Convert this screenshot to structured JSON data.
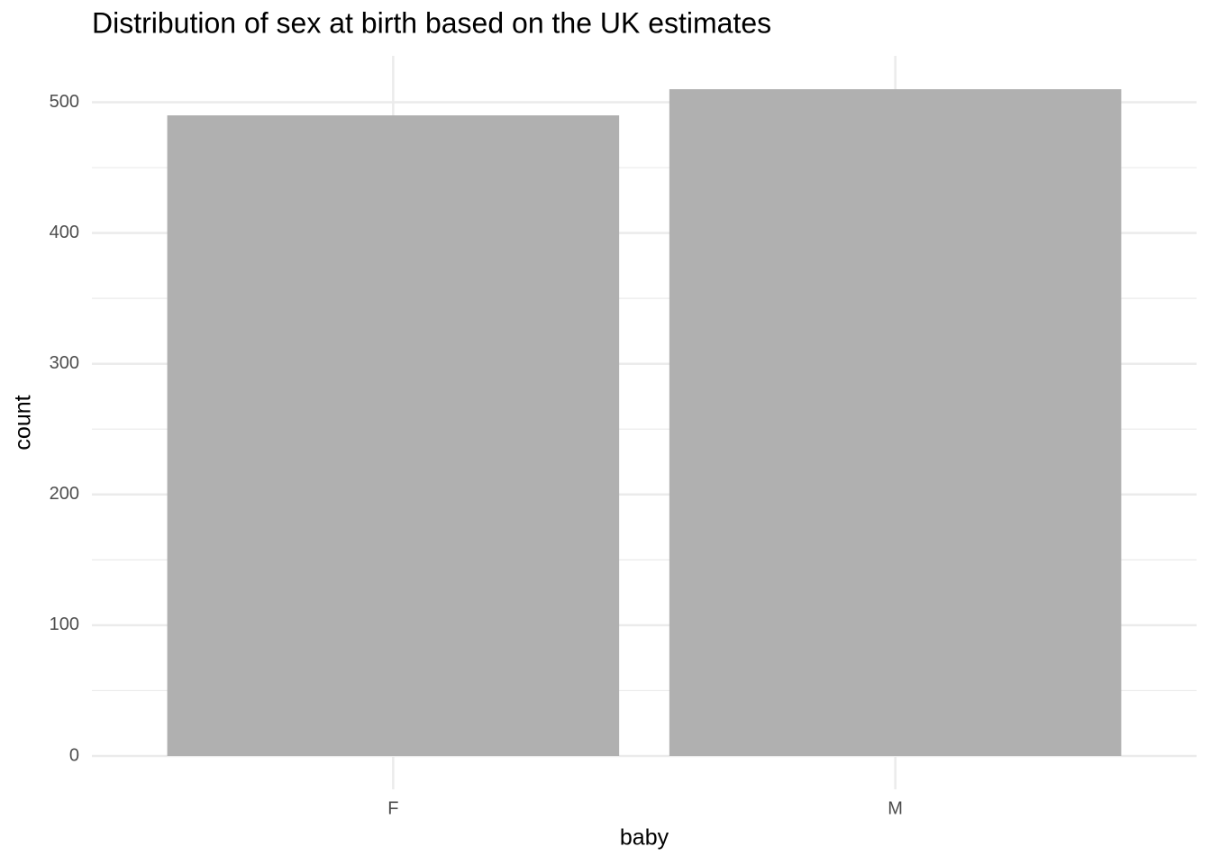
{
  "chart_data": {
    "type": "bar",
    "title": "Distribution of sex at birth based on the UK estimates",
    "x_label": "baby",
    "y_label": "count",
    "categories": [
      "F",
      "M"
    ],
    "values": [
      490,
      510
    ],
    "color": "#b0b0b0",
    "ylim": [
      -25.5,
      535.5
    ],
    "yticks": [
      0,
      100,
      200,
      300,
      400,
      500
    ],
    "yticks_minor": [
      50,
      150,
      250,
      350,
      450
    ],
    "grid": true
  }
}
